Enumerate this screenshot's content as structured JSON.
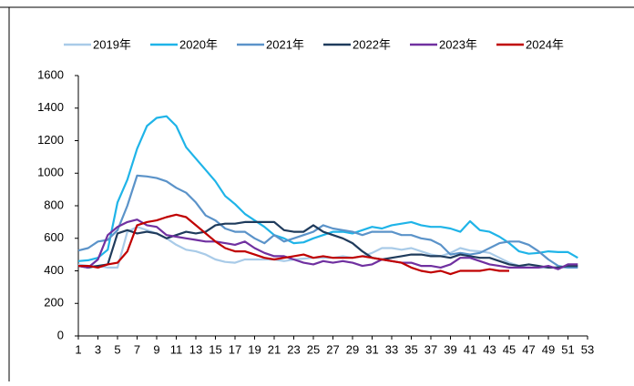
{
  "chart_data": {
    "type": "line",
    "x": [
      1,
      2,
      3,
      4,
      5,
      6,
      7,
      8,
      9,
      10,
      11,
      12,
      13,
      14,
      15,
      16,
      17,
      18,
      19,
      20,
      21,
      22,
      23,
      24,
      25,
      26,
      27,
      28,
      29,
      30,
      31,
      32,
      33,
      34,
      35,
      36,
      37,
      38,
      39,
      40,
      41,
      42,
      43,
      44,
      45,
      46,
      47,
      48,
      49,
      50,
      51,
      52
    ],
    "xlim": [
      1,
      53
    ],
    "xticks": [
      1,
      3,
      5,
      7,
      9,
      11,
      13,
      15,
      17,
      19,
      21,
      23,
      25,
      27,
      29,
      31,
      33,
      35,
      37,
      39,
      41,
      43,
      45,
      47,
      49,
      51,
      53
    ],
    "ylim": [
      0,
      1600
    ],
    "yticks": [
      0,
      200,
      400,
      600,
      800,
      1000,
      1200,
      1400,
      1600
    ],
    "series": [
      {
        "name": "2019年",
        "color": "#a9cbe8",
        "values": [
          440,
          430,
          430,
          420,
          420,
          640,
          670,
          650,
          630,
          600,
          560,
          530,
          520,
          500,
          470,
          455,
          450,
          470,
          470,
          470,
          470,
          460,
          470,
          475,
          480,
          480,
          480,
          490,
          480,
          490,
          510,
          540,
          540,
          530,
          540,
          520,
          500,
          490,
          510,
          540,
          525,
          520,
          510,
          480,
          450,
          430,
          420,
          420,
          420,
          420,
          420,
          420
        ]
      },
      {
        "name": "2020年",
        "color": "#1fb4e8",
        "values": [
          460,
          465,
          480,
          530,
          820,
          960,
          1150,
          1290,
          1340,
          1350,
          1290,
          1160,
          1090,
          1020,
          950,
          860,
          810,
          750,
          710,
          670,
          620,
          600,
          570,
          575,
          600,
          620,
          640,
          640,
          630,
          650,
          670,
          660,
          680,
          690,
          700,
          680,
          670,
          670,
          660,
          640,
          705,
          650,
          640,
          610,
          570,
          520,
          505,
          510,
          520,
          515,
          515,
          480
        ]
      },
      {
        "name": "2021年",
        "color": "#5b93c9",
        "values": [
          525,
          540,
          580,
          590,
          650,
          800,
          985,
          980,
          970,
          950,
          910,
          880,
          820,
          740,
          710,
          660,
          640,
          640,
          600,
          570,
          620,
          580,
          600,
          620,
          640,
          680,
          660,
          650,
          640,
          620,
          640,
          640,
          640,
          620,
          620,
          600,
          590,
          560,
          500,
          510,
          500,
          510,
          540,
          570,
          580,
          580,
          560,
          520,
          470,
          430,
          420,
          420
        ]
      },
      {
        "name": "2022年",
        "color": "#1f3b5c",
        "values": [
          430,
          420,
          430,
          440,
          630,
          650,
          630,
          640,
          630,
          600,
          620,
          640,
          630,
          640,
          680,
          690,
          690,
          700,
          700,
          700,
          700,
          650,
          640,
          640,
          680,
          640,
          620,
          600,
          570,
          520,
          480,
          470,
          480,
          490,
          500,
          500,
          490,
          490,
          480,
          500,
          490,
          480,
          480,
          460,
          440,
          430,
          440,
          430,
          420,
          420,
          430,
          430
        ]
      },
      {
        "name": "2023年",
        "color": "#7030a0",
        "values": [
          430,
          420,
          470,
          620,
          670,
          700,
          715,
          680,
          670,
          620,
          610,
          600,
          590,
          580,
          580,
          570,
          560,
          580,
          540,
          510,
          490,
          490,
          470,
          450,
          440,
          460,
          450,
          460,
          450,
          430,
          440,
          470,
          460,
          450,
          450,
          430,
          430,
          420,
          440,
          480,
          480,
          460,
          440,
          430,
          420,
          420,
          420,
          420,
          430,
          410,
          440,
          440
        ]
      },
      {
        "name": "2024年",
        "color": "#c00000",
        "values": [
          430,
          430,
          420,
          440,
          450,
          520,
          680,
          700,
          710,
          730,
          745,
          730,
          680,
          630,
          580,
          540,
          520,
          520,
          500,
          480,
          470,
          480,
          490,
          500,
          480,
          490,
          480,
          480,
          480,
          490,
          480,
          470,
          460,
          450,
          420,
          400,
          390,
          400,
          380,
          400,
          400,
          400,
          410,
          400,
          400,
          null,
          null,
          null,
          null,
          null,
          null,
          null
        ]
      }
    ]
  }
}
